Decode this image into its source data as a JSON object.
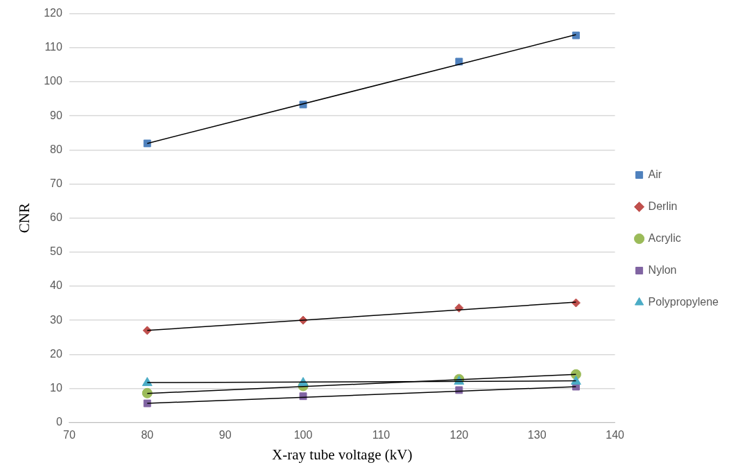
{
  "chart_data": {
    "type": "scatter",
    "xlabel": "X-ray tube voltage (kV)",
    "ylabel": "CNR",
    "xlim": [
      70,
      140
    ],
    "xticks": [
      70,
      80,
      90,
      100,
      110,
      120,
      130,
      140
    ],
    "ylim": [
      0,
      120
    ],
    "yticks": [
      0,
      10,
      20,
      30,
      40,
      50,
      60,
      70,
      80,
      90,
      100,
      110,
      120
    ],
    "grid": "y",
    "legend": "right",
    "series": [
      {
        "name": "Air",
        "color": "#4f81bd",
        "marker": "square",
        "x": [
          80,
          100,
          120,
          135
        ],
        "values": [
          81.9,
          93.3,
          105.9,
          113.6
        ]
      },
      {
        "name": "Derlin",
        "color": "#c0504d",
        "marker": "diamond",
        "x": [
          80,
          100,
          120,
          135
        ],
        "values": [
          27,
          30,
          33.6,
          35.1
        ]
      },
      {
        "name": "Acrylic",
        "color": "#9bbb59",
        "marker": "circle",
        "x": [
          80,
          100,
          120,
          135
        ],
        "values": [
          8.6,
          10.7,
          12.7,
          14.1
        ]
      },
      {
        "name": "Nylon",
        "color": "#8064a2",
        "marker": "square",
        "x": [
          80,
          100,
          120,
          135
        ],
        "values": [
          5.6,
          7.7,
          9.5,
          10.5
        ]
      },
      {
        "name": "Polypropylene",
        "color": "#4bacc6",
        "marker": "triangle",
        "x": [
          80,
          100,
          120,
          135
        ],
        "values": [
          11.6,
          11.6,
          12,
          12
        ]
      },
      {
        "type": "line",
        "color": "#000000",
        "marker": "none",
        "x": [
          80,
          135
        ],
        "values": [
          81.9,
          113.8
        ]
      },
      {
        "type": "line",
        "color": "#000000",
        "marker": "none",
        "x": [
          80,
          135
        ],
        "values": [
          27,
          35.3
        ]
      },
      {
        "type": "line",
        "color": "#000000",
        "marker": "none",
        "x": [
          80,
          135
        ],
        "values": [
          8.5,
          14.1
        ]
      },
      {
        "type": "line",
        "color": "#000000",
        "marker": "none",
        "x": [
          80,
          135
        ],
        "values": [
          5.6,
          10.5
        ]
      },
      {
        "type": "line",
        "color": "#000000",
        "marker": "none",
        "x": [
          80,
          135
        ],
        "values": [
          11.7,
          12.2
        ]
      }
    ]
  }
}
